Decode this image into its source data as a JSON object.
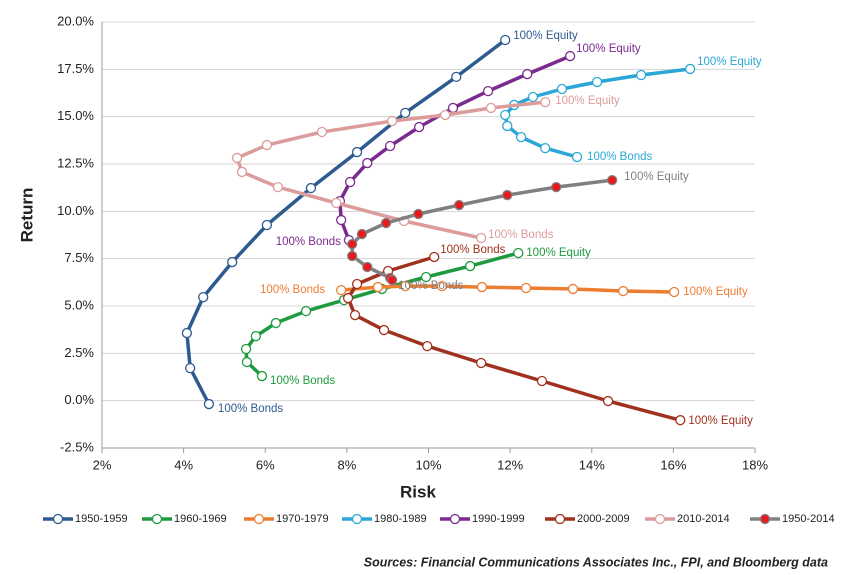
{
  "chart_data": {
    "type": "line",
    "x_label": "Risk",
    "y_label": "Return",
    "source": "Sources: Financial Communications Associates Inc., FPI, and Bloomberg data",
    "xlim": [
      2,
      18
    ],
    "xticks": [
      {
        "value": 2,
        "label": "2%"
      },
      {
        "value": 4,
        "label": "4%"
      },
      {
        "value": 6,
        "label": "6%"
      },
      {
        "value": 8,
        "label": "8%"
      },
      {
        "value": 10,
        "label": "10%"
      },
      {
        "value": 12,
        "label": "12%"
      },
      {
        "value": 14,
        "label": "14%"
      },
      {
        "value": 16,
        "label": "16%"
      },
      {
        "value": 18,
        "label": "18%"
      }
    ],
    "ylim": [
      -2.5,
      20
    ],
    "yticks": [
      {
        "value": -2.5,
        "label": "-2.5%"
      },
      {
        "value": 0,
        "label": "0.0%"
      },
      {
        "value": 2.5,
        "label": "2.5%"
      },
      {
        "value": 5,
        "label": "5.0%"
      },
      {
        "value": 7.5,
        "label": "7.5%"
      },
      {
        "value": 10,
        "label": "10.0%"
      },
      {
        "value": 12.5,
        "label": "12.5%"
      },
      {
        "value": 15,
        "label": "15.0%"
      },
      {
        "value": 17.5,
        "label": "17.5%"
      },
      {
        "value": 20,
        "label": "20.0%"
      }
    ],
    "grid": true,
    "legend": "bottom",
    "series": [
      {
        "name": "1950-1959",
        "color": "#2e5b8f",
        "first_label": "100% Equity",
        "last_label": "100% Bonds",
        "x": [
          11.88,
          10.68,
          9.43,
          8.25,
          7.12,
          6.04,
          5.19,
          4.48,
          4.08,
          4.16,
          4.62
        ],
        "values": [
          19.05,
          17.1,
          15.2,
          13.13,
          11.23,
          9.28,
          7.32,
          5.47,
          3.57,
          1.72,
          -0.18
        ]
      },
      {
        "name": "1960-1969",
        "color": "#1e9b3e",
        "first_label": "100% Equity",
        "last_label": "100% Bonds",
        "x": [
          12.2,
          11.02,
          9.94,
          8.86,
          7.93,
          7.0,
          6.26,
          5.77,
          5.53,
          5.55,
          5.92
        ],
        "values": [
          7.8,
          7.11,
          6.53,
          5.9,
          5.31,
          4.73,
          4.1,
          3.41,
          2.73,
          2.04,
          1.3
        ]
      },
      {
        "name": "1970-1979",
        "color": "#ed7d31",
        "first_label": "100% Bonds",
        "last_label": "100% Equity",
        "x": [
          7.86,
          8.76,
          9.43,
          10.33,
          11.31,
          12.39,
          13.54,
          14.77,
          16.02
        ],
        "values": [
          5.84,
          6.0,
          6.05,
          6.05,
          6.0,
          5.95,
          5.9,
          5.79,
          5.74
        ]
      },
      {
        "name": "1980-1989",
        "color": "#2aa7d6",
        "first_label": "100% Equity",
        "last_label": "100% Bonds",
        "x": [
          16.41,
          15.21,
          14.13,
          13.27,
          12.56,
          12.1,
          11.88,
          11.93,
          12.27,
          12.86,
          13.64
        ],
        "values": [
          17.52,
          17.2,
          16.83,
          16.46,
          16.04,
          15.62,
          15.09,
          14.51,
          13.92,
          13.34,
          12.87
        ]
      },
      {
        "name": "1990-1999",
        "color": "#7b2a8f",
        "first_label": "100% Equity",
        "last_label": "100% Bonds",
        "x": [
          13.47,
          12.42,
          11.46,
          10.6,
          9.77,
          9.06,
          8.5,
          8.08,
          7.83,
          7.86,
          8.05
        ],
        "values": [
          18.2,
          17.25,
          16.35,
          15.46,
          14.45,
          13.45,
          12.55,
          11.55,
          10.54,
          9.54,
          8.48
        ]
      },
      {
        "name": "2000-2009",
        "color": "#a0311e",
        "first_label": "100% Bonds",
        "last_label": "100% Equity",
        "x": [
          10.14,
          9.01,
          8.25,
          8.03,
          8.2,
          8.91,
          9.97,
          11.29,
          12.78,
          14.4,
          16.17
        ],
        "values": [
          7.59,
          6.85,
          6.16,
          5.42,
          4.52,
          3.73,
          2.88,
          1.99,
          1.04,
          -0.02,
          -1.03
        ]
      },
      {
        "name": "2010-2014",
        "color": "#dc9c9c",
        "first_label": "100% Equity",
        "last_label": "100% Bonds",
        "x": [
          12.86,
          11.53,
          10.41,
          9.11,
          7.39,
          6.04,
          5.31,
          5.43,
          6.31,
          7.74,
          9.4,
          11.29
        ],
        "values": [
          15.77,
          15.46,
          15.09,
          14.77,
          14.19,
          13.5,
          12.82,
          12.08,
          11.28,
          10.44,
          9.49,
          8.59
        ]
      },
      {
        "name": "1950-2014",
        "color": "#808080",
        "marker_color": "#e41a1c",
        "first_label": "100% Equity",
        "last_label": "100% Bonds",
        "x": [
          14.5,
          13.13,
          11.93,
          10.75,
          9.75,
          8.96,
          8.37,
          8.13,
          8.13,
          8.5,
          9.06,
          9.11
        ],
        "values": [
          11.65,
          11.28,
          10.86,
          10.33,
          9.86,
          9.38,
          8.8,
          8.27,
          7.64,
          7.06,
          6.48,
          6.37
        ]
      }
    ]
  }
}
